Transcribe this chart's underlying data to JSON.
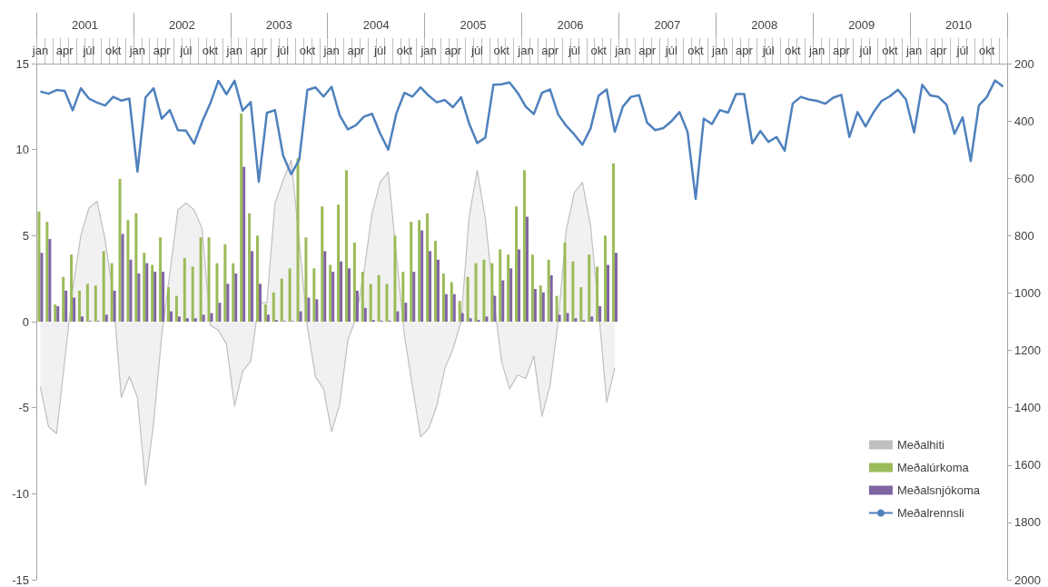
{
  "chart_data": {
    "type": "bar",
    "categories": [
      "jan",
      null,
      null,
      "apr",
      null,
      null,
      "júl",
      null,
      null,
      "okt",
      null,
      null,
      "jan",
      null,
      null,
      "apr",
      null,
      null,
      "júl",
      null,
      null,
      "okt",
      null,
      null,
      "jan",
      null,
      null,
      "apr",
      null,
      null,
      "júl",
      null,
      null,
      "okt",
      null,
      null,
      "jan",
      null,
      null,
      "apr",
      null,
      null,
      "júl",
      null,
      null,
      "okt",
      null,
      null,
      "jan",
      null,
      null,
      "apr",
      null,
      null,
      "júl",
      null,
      null,
      "okt",
      null,
      null,
      "jan",
      null,
      null,
      "apr",
      null,
      null,
      "júl",
      null,
      null,
      "okt",
      null,
      null,
      "jan",
      null,
      null,
      "apr",
      null,
      null,
      "júl",
      null,
      null,
      "okt",
      null,
      null,
      "jan",
      null,
      null,
      "apr",
      null,
      null,
      "júl",
      null,
      null,
      "okt",
      null,
      null,
      "jan",
      null,
      null,
      "apr",
      null,
      null,
      "júl",
      null,
      null,
      "okt",
      null,
      null,
      "jan",
      null,
      null,
      "apr",
      null,
      null,
      "júl",
      null,
      null,
      "okt",
      null,
      null
    ],
    "annotations": [
      "2001",
      "2002",
      "2003",
      "2004",
      "2005",
      "2006",
      "2007",
      "2008",
      "2009",
      "2010"
    ],
    "series": [
      {
        "name": "Meðalhiti",
        "type": "area",
        "color": "#bfbfbf",
        "values": [
          -3.8,
          -6.1,
          -6.5,
          -2.3,
          1.9,
          5.0,
          6.6,
          7.0,
          4.8,
          1.5,
          -4.4,
          -3.2,
          -4.4,
          -9.5,
          -5.9,
          -0.8,
          2.8,
          6.5,
          6.9,
          6.5,
          5.4,
          -0.2,
          -0.5,
          -1.3,
          -4.9,
          -2.9,
          -2.3,
          1.1,
          1.1,
          6.9,
          8.2,
          9.4,
          4.7,
          -0.3,
          -3.2,
          -3.9,
          -6.4,
          -4.8,
          -1.1,
          0.2,
          2.9,
          6.3,
          8.1,
          8.7,
          3.9,
          -0.8,
          -3.8,
          -6.7,
          -6.2,
          -4.9,
          -2.7,
          -1.6,
          0.0,
          6.1,
          8.8,
          6.0,
          1.5,
          -2.3,
          -3.9,
          -3.1,
          -3.3,
          -2.0,
          -5.5,
          -3.7,
          0.0,
          5.3,
          7.5,
          8.1,
          5.6,
          0.7,
          -4.7,
          -2.7,
          null,
          null,
          null,
          null,
          null,
          null,
          null,
          null,
          null,
          null,
          null,
          null,
          null,
          null,
          null,
          null,
          null,
          null,
          null,
          null,
          null,
          null,
          null,
          null,
          null,
          null,
          null,
          null,
          null,
          null,
          null,
          null,
          null,
          null,
          null,
          null,
          null,
          null,
          null,
          null,
          null,
          null,
          null,
          null,
          null,
          null,
          null,
          null
        ]
      },
      {
        "name": "Meðalúrkoma",
        "color": "#9bbb59",
        "values": [
          6.4,
          5.8,
          1.0,
          2.6,
          3.9,
          1.8,
          2.2,
          2.1,
          4.1,
          3.4,
          8.3,
          5.9,
          6.3,
          4.0,
          3.3,
          4.9,
          2.0,
          1.5,
          3.7,
          3.2,
          4.9,
          4.9,
          3.4,
          4.5,
          3.4,
          12.1,
          6.3,
          5.0,
          1.0,
          1.7,
          2.5,
          3.1,
          9.5,
          4.9,
          3.1,
          6.7,
          3.3,
          6.8,
          8.8,
          4.6,
          2.9,
          2.2,
          2.7,
          2.2,
          5.0,
          2.9,
          5.8,
          5.9,
          6.3,
          4.7,
          2.8,
          2.3,
          1.2,
          2.6,
          3.4,
          3.6,
          3.4,
          4.2,
          3.9,
          6.7,
          8.8,
          3.9,
          2.1,
          3.6,
          1.5,
          4.6,
          3.5,
          2.0,
          3.9,
          3.2,
          5.0,
          9.2,
          null,
          null,
          null,
          null,
          null,
          null,
          null,
          null,
          null,
          null,
          null,
          null,
          null,
          null,
          null,
          null,
          null,
          null,
          null,
          null,
          null,
          null,
          null,
          null,
          null,
          null,
          null,
          null,
          null,
          null,
          null,
          null,
          null,
          null,
          null,
          null,
          null,
          null,
          null,
          null,
          null,
          null,
          null,
          null,
          null,
          null,
          null,
          null
        ]
      },
      {
        "name": "Meðalsnjókoma",
        "color": "#8064a2",
        "values": [
          4.0,
          4.8,
          0.9,
          1.8,
          1.4,
          0.3,
          0.04,
          0.04,
          0.4,
          1.8,
          5.1,
          3.6,
          2.8,
          3.4,
          2.9,
          2.9,
          0.6,
          0.3,
          0.2,
          0.2,
          0.4,
          0.5,
          1.1,
          2.2,
          2.8,
          9.0,
          4.1,
          2.2,
          0.4,
          0.1,
          0.04,
          0.04,
          0.6,
          1.4,
          1.3,
          4.1,
          2.9,
          3.5,
          3.1,
          1.8,
          0.8,
          0.1,
          0.06,
          0.06,
          0.6,
          1.1,
          2.9,
          5.3,
          4.1,
          3.6,
          1.6,
          1.6,
          0.5,
          0.2,
          0.1,
          0.3,
          1.5,
          2.4,
          3.1,
          4.2,
          6.1,
          1.9,
          1.7,
          2.7,
          0.4,
          0.5,
          0.2,
          0.08,
          0.3,
          0.9,
          3.3,
          4.0,
          null,
          null,
          null,
          null,
          null,
          null,
          null,
          null,
          null,
          null,
          null,
          null,
          null,
          null,
          null,
          null,
          null,
          null,
          null,
          null,
          null,
          null,
          null,
          null,
          null,
          null,
          null,
          null,
          null,
          null,
          null,
          null,
          null,
          null,
          null,
          null,
          null,
          null,
          null,
          null,
          null,
          null,
          null,
          null,
          null,
          null,
          null,
          null
        ]
      },
      {
        "name": "Meðalrennsli",
        "type": "line",
        "axis": "y2",
        "color": "#4f81bd",
        "values": [
          297,
          305,
          292,
          295,
          363,
          286,
          322,
          336,
          346,
          316,
          329,
          322,
          577,
          318,
          286,
          392,
          362,
          432,
          434,
          479,
          403,
          339,
          260,
          307,
          260,
          364,
          334,
          612,
          372,
          362,
          520,
          586,
          535,
          292,
          283,
          315,
          281,
          380,
          429,
          415,
          385,
          375,
          444,
          500,
          374,
          302,
          315,
          283,
          312,
          335,
          327,
          352,
          317,
          409,
          477,
          458,
          274,
          272,
          266,
          302,
          350,
          376,
          302,
          290,
          377,
          417,
          447,
          483,
          427,
          312,
          290,
          438,
          350,
          316,
          310,
          406,
          432,
          425,
          401,
          369,
          438,
          672,
          392,
          411,
          362,
          371,
          306,
          306,
          478,
          435,
          473,
          456,
          504,
          339,
          316,
          325,
          330,
          340,
          319,
          309,
          456,
          369,
          419,
          369,
          330,
          314,
          291,
          325,
          440,
          274,
          311,
          316,
          343,
          445,
          387,
          540,
          346,
          316,
          259,
          280
        ]
      }
    ],
    "ylim": [
      -15,
      15
    ],
    "yticks": [
      -15,
      -10,
      -5,
      0,
      5,
      10,
      15
    ],
    "y2lim": [
      2000,
      200
    ],
    "y2ticks": [
      200,
      400,
      600,
      800,
      1000,
      1200,
      1400,
      1600,
      1800,
      2000
    ],
    "legend": "bottom right",
    "marker": "none",
    "line_style": "solid"
  }
}
